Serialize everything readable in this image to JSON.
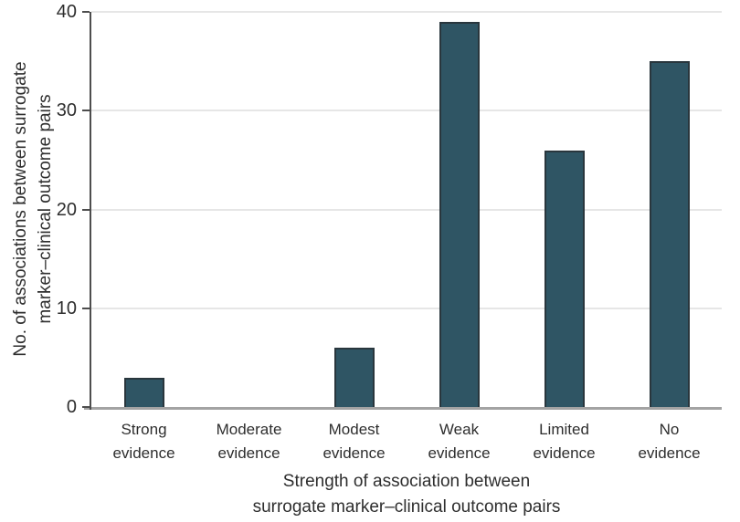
{
  "chart_data": {
    "type": "bar",
    "categories": [
      "Strong\nevidence",
      "Moderate\nevidence",
      "Modest\nevidence",
      "Weak\nevidence",
      "Limited\nevidence",
      "No\nevidence"
    ],
    "values": [
      3,
      0,
      6,
      39,
      26,
      35
    ],
    "xlabel": "Strength of association between\nsurrogate marker–clinical outcome pairs",
    "ylabel": "No. of associations between surrogate\nmarker–clinical outcome pairs",
    "ylim": [
      0,
      40
    ],
    "yticks": [
      0,
      10,
      20,
      30,
      40
    ],
    "grid": "horizontal-light",
    "legend": "none",
    "colors": {
      "bar_fill": "#2f5564",
      "bar_edge": "#29363d",
      "gridline": "#e6e6e6",
      "axis_line": "#4d4d4d",
      "baseline": "#a3a3a3",
      "text": "#2e2e2e",
      "background": "#ffffff"
    }
  }
}
